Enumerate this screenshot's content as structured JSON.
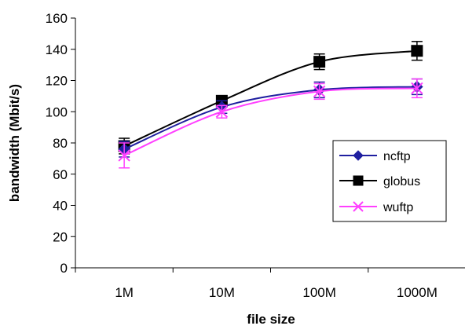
{
  "chart_data": {
    "type": "line",
    "title": "",
    "xlabel": "file size",
    "ylabel": "bandwidth (Mbit/s)",
    "categories": [
      "1M",
      "10M",
      "100M",
      "1000M"
    ],
    "ylim": [
      0,
      160
    ],
    "yticks": [
      0,
      20,
      40,
      60,
      80,
      100,
      120,
      140,
      160
    ],
    "grid": false,
    "legend_position": "right",
    "series": [
      {
        "name": "ncftp",
        "values": [
          76,
          103,
          114,
          116
        ],
        "errors": [
          5,
          4,
          5,
          5
        ],
        "color": "#1f1fa0",
        "marker": "diamond"
      },
      {
        "name": "globus",
        "values": [
          78,
          107,
          132,
          139
        ],
        "errors": [
          5,
          3,
          5,
          6
        ],
        "color": "#000000",
        "marker": "square"
      },
      {
        "name": "wuftp",
        "values": [
          72,
          100,
          113,
          115
        ],
        "errors": [
          8,
          4,
          5,
          6
        ],
        "color": "#ff40ff",
        "marker": "x"
      }
    ]
  }
}
